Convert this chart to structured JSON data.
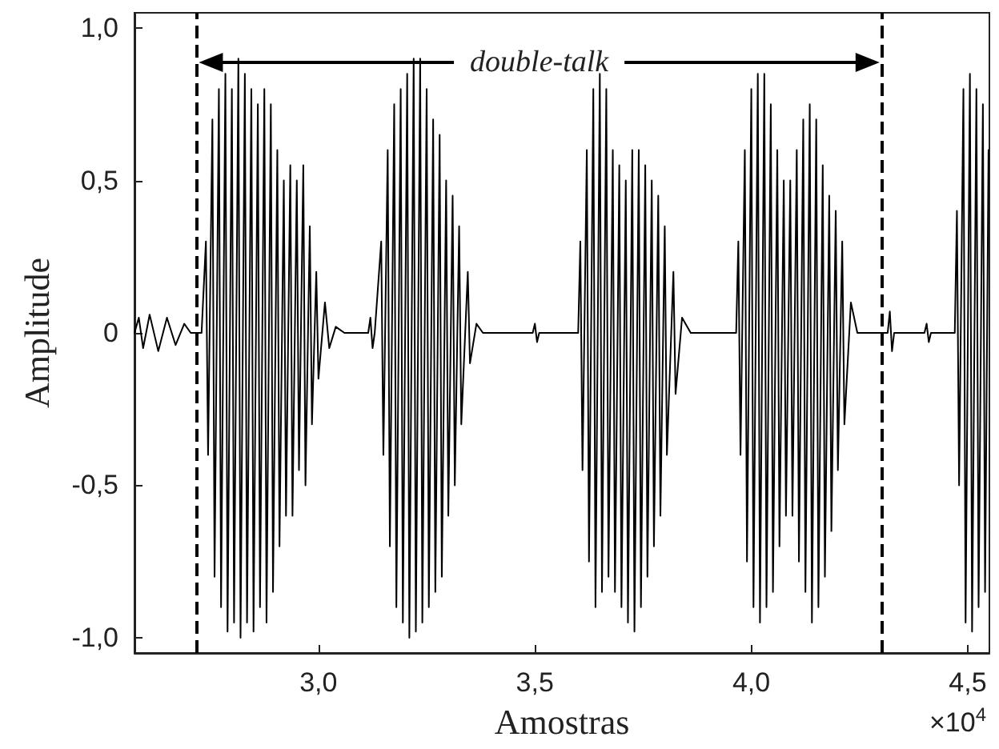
{
  "chart_data": {
    "type": "line",
    "xlabel": "Amostras",
    "ylabel": "Amplitude",
    "annotations": [
      "×10$^{4}$",
      "double-talk"
    ],
    "xlim": [
      2.575,
      4.55
    ],
    "xticks": [
      {
        "value": 3,
        "label": "3,0"
      },
      {
        "value": 3.5,
        "label": "3,5"
      },
      {
        "value": 4,
        "label": "4,0"
      },
      {
        "value": 4.5,
        "label": "4,5"
      }
    ],
    "ylim": [
      -1.05,
      1.05
    ],
    "yticks": [
      {
        "value": -1,
        "label": "-1,0"
      },
      {
        "value": -0.5,
        "label": "-0,5"
      },
      {
        "value": 0,
        "label": "0"
      },
      {
        "value": 0.5,
        "label": "0,5"
      },
      {
        "value": 1,
        "label": "1,0"
      }
    ],
    "grid": false,
    "marker": "none",
    "line_style": "solid",
    "ref_lines": [
      {
        "axis": "x",
        "value": 2.72,
        "color": "#000000",
        "line_style": "dashed"
      },
      {
        "axis": "x",
        "value": 4.3,
        "color": "#000000",
        "line_style": "dashed"
      }
    ],
    "series": [
      {
        "color": "#000000",
        "x": [
          2.575,
          2.585,
          2.595,
          2.61,
          2.63,
          2.65,
          2.67,
          2.69,
          2.705,
          2.73,
          2.74,
          2.745,
          2.755,
          2.76,
          2.77,
          2.775,
          2.785,
          2.79,
          2.8,
          2.805,
          2.815,
          2.82,
          2.83,
          2.835,
          2.845,
          2.85,
          2.86,
          2.865,
          2.875,
          2.88,
          2.89,
          2.895,
          2.905,
          2.91,
          2.92,
          2.925,
          2.935,
          2.94,
          2.95,
          2.955,
          2.965,
          2.97,
          2.98,
          2.985,
          2.995,
          3.0,
          3.015,
          3.025,
          3.04,
          3.06,
          3.115,
          3.12,
          3.125,
          3.13,
          3.145,
          3.15,
          3.16,
          3.165,
          3.175,
          3.18,
          3.19,
          3.195,
          3.205,
          3.21,
          3.22,
          3.225,
          3.235,
          3.24,
          3.25,
          3.255,
          3.265,
          3.27,
          3.28,
          3.285,
          3.295,
          3.3,
          3.31,
          3.315,
          3.325,
          3.33,
          3.345,
          3.35,
          3.365,
          3.38,
          3.495,
          3.5,
          3.505,
          3.51,
          3.6,
          3.605,
          3.61,
          3.62,
          3.625,
          3.635,
          3.64,
          3.65,
          3.655,
          3.665,
          3.67,
          3.68,
          3.685,
          3.695,
          3.7,
          3.71,
          3.715,
          3.725,
          3.73,
          3.74,
          3.745,
          3.755,
          3.76,
          3.77,
          3.775,
          3.785,
          3.79,
          3.8,
          3.805,
          3.82,
          3.825,
          3.84,
          3.86,
          3.965,
          3.97,
          3.975,
          3.985,
          3.99,
          4.0,
          4.005,
          4.015,
          4.02,
          4.03,
          4.035,
          4.045,
          4.05,
          4.06,
          4.065,
          4.075,
          4.08,
          4.09,
          4.095,
          4.105,
          4.11,
          4.12,
          4.125,
          4.135,
          4.14,
          4.15,
          4.155,
          4.165,
          4.17,
          4.18,
          4.185,
          4.195,
          4.2,
          4.21,
          4.215,
          4.23,
          4.245,
          4.315,
          4.32,
          4.325,
          4.33,
          4.4,
          4.405,
          4.41,
          4.415,
          4.47,
          4.475,
          4.48,
          4.49,
          4.495,
          4.505,
          4.51,
          4.52,
          4.525,
          4.535,
          4.54,
          4.548
        ],
        "values": [
          0,
          0.05,
          -0.05,
          0.06,
          -0.06,
          0.05,
          -0.04,
          0.03,
          0,
          0,
          0.3,
          -0.4,
          0.7,
          -0.8,
          0.8,
          -0.9,
          0.85,
          -0.98,
          0.8,
          -0.95,
          0.9,
          -1.0,
          0.85,
          -0.95,
          0.8,
          -0.98,
          0.75,
          -0.9,
          0.8,
          -0.95,
          0.75,
          -0.85,
          0.6,
          -0.7,
          0.5,
          -0.6,
          0.55,
          -0.6,
          0.5,
          -0.45,
          0.55,
          -0.5,
          0.35,
          -0.3,
          0.2,
          -0.15,
          0.1,
          -0.05,
          0.02,
          0,
          0,
          0.05,
          -0.05,
          0,
          0.3,
          -0.4,
          0.6,
          -0.7,
          0.75,
          -0.9,
          0.8,
          -0.95,
          0.85,
          -1.0,
          0.9,
          -0.98,
          0.9,
          -0.95,
          0.8,
          -0.9,
          0.7,
          -0.85,
          0.65,
          -0.8,
          0.5,
          -0.6,
          0.45,
          -0.5,
          0.35,
          -0.3,
          0.2,
          -0.1,
          0.03,
          0,
          0,
          0.03,
          -0.03,
          0,
          0,
          0.3,
          -0.45,
          0.6,
          -0.75,
          0.8,
          -0.9,
          0.85,
          -0.85,
          0.8,
          -0.8,
          0.6,
          -0.85,
          0.55,
          -0.9,
          0.5,
          -0.95,
          0.6,
          -0.98,
          0.6,
          -0.9,
          0.55,
          -0.8,
          0.5,
          -0.7,
          0.45,
          -0.6,
          0.35,
          -0.4,
          0.2,
          -0.2,
          0.05,
          0,
          0,
          0.3,
          -0.4,
          0.6,
          -0.75,
          0.8,
          -0.9,
          0.85,
          -0.95,
          0.85,
          -0.9,
          0.75,
          -0.85,
          0.6,
          -0.7,
          0.5,
          -0.6,
          0.5,
          -0.6,
          0.6,
          -0.75,
          0.7,
          -0.85,
          0.75,
          -0.95,
          0.7,
          -0.9,
          0.55,
          -0.8,
          0.45,
          -0.65,
          0.4,
          -0.45,
          0.3,
          -0.3,
          0.1,
          0,
          0,
          0.07,
          -0.06,
          0,
          0,
          0.03,
          -0.03,
          0,
          0,
          0.4,
          -0.5,
          0.8,
          -0.95,
          0.85,
          -0.98,
          0.8,
          -0.9,
          0.75,
          -0.85,
          0.6
        ]
      }
    ]
  }
}
